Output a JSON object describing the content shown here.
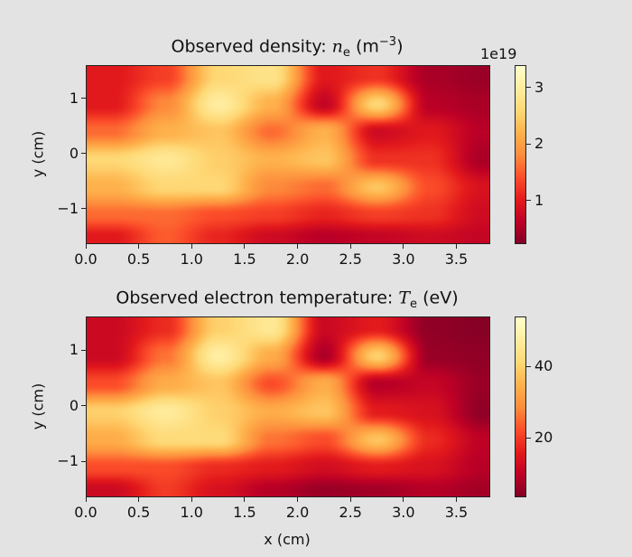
{
  "chart_data": [
    {
      "type": "heatmap",
      "title_prefix": "Observed density: ",
      "title_var": "n",
      "title_sub": "e",
      "title_unit_pre": " (m",
      "title_unit_sup": "−3",
      "title_unit_post": ")",
      "xlabel": "",
      "ylabel": "y (cm)",
      "xlim": [
        0,
        3.82
      ],
      "ylim": [
        -1.64,
        1.6
      ],
      "xticks": [
        "0.0",
        "0.5",
        "1.0",
        "1.5",
        "2.0",
        "2.5",
        "3.0",
        "3.5"
      ],
      "yticks": [
        "1",
        "0",
        "−1"
      ],
      "ytick_values": [
        1,
        0,
        -1
      ],
      "colorbar": {
        "label_offset": "1e19",
        "range": [
          0.23,
          3.4
        ],
        "ticks": [
          "3",
          "2",
          "1"
        ],
        "tick_values": [
          3,
          2,
          1
        ],
        "colormap": "YlOrRd_r"
      },
      "grid_x": [
        0.25,
        0.75,
        1.25,
        1.75,
        2.25,
        2.75,
        3.25,
        3.75
      ],
      "grid_y": [
        1.4,
        0.9,
        0.4,
        -0.1,
        -0.6,
        -1.1,
        -1.5
      ],
      "values": [
        [
          1.0,
          1.3,
          2.6,
          2.8,
          1.0,
          1.2,
          0.5,
          0.4
        ],
        [
          1.0,
          1.8,
          3.0,
          2.2,
          0.7,
          2.6,
          0.6,
          0.5
        ],
        [
          1.6,
          2.2,
          2.4,
          1.6,
          2.2,
          0.8,
          1.0,
          0.6
        ],
        [
          2.6,
          2.9,
          2.5,
          2.2,
          2.4,
          1.2,
          1.2,
          0.5
        ],
        [
          2.2,
          2.6,
          2.6,
          1.8,
          1.6,
          2.4,
          1.4,
          0.9
        ],
        [
          1.6,
          1.6,
          1.4,
          1.3,
          1.1,
          1.3,
          1.2,
          0.8
        ],
        [
          1.0,
          1.5,
          1.1,
          0.8,
          0.6,
          0.7,
          0.8,
          0.7
        ]
      ]
    },
    {
      "type": "heatmap",
      "title_prefix": "Observed electron temperature: ",
      "title_var": "T",
      "title_sub": "e",
      "title_unit_pre": " (eV)",
      "title_unit_sup": "",
      "title_unit_post": "",
      "xlabel": "x (cm)",
      "ylabel": "y (cm)",
      "xlim": [
        0,
        3.82
      ],
      "ylim": [
        -1.64,
        1.6
      ],
      "xticks": [
        "0.0",
        "0.5",
        "1.0",
        "1.5",
        "2.0",
        "2.5",
        "3.0",
        "3.5"
      ],
      "yticks": [
        "1",
        "0",
        "−1"
      ],
      "ytick_values": [
        1,
        0,
        -1
      ],
      "colorbar": {
        "label_offset": "",
        "range": [
          3.3,
          54
        ],
        "ticks": [
          "40",
          "20"
        ],
        "tick_values": [
          40,
          20
        ],
        "colormap": "YlOrRd_r"
      },
      "grid_x": [
        0.25,
        0.75,
        1.25,
        1.75,
        2.25,
        2.75,
        3.25,
        3.75
      ],
      "grid_y": [
        1.4,
        0.9,
        0.4,
        -0.1,
        -0.6,
        -1.1,
        -1.5
      ],
      "values": [
        [
          12,
          18,
          40,
          46,
          12,
          16,
          5,
          4
        ],
        [
          12,
          26,
          48,
          34,
          8,
          40,
          6,
          5
        ],
        [
          22,
          34,
          38,
          22,
          34,
          9,
          11,
          6
        ],
        [
          40,
          47,
          40,
          34,
          38,
          16,
          14,
          5
        ],
        [
          34,
          42,
          42,
          26,
          22,
          38,
          18,
          10
        ],
        [
          22,
          22,
          18,
          16,
          13,
          16,
          14,
          9
        ],
        [
          12,
          20,
          14,
          9,
          6,
          7,
          9,
          7
        ]
      ]
    }
  ]
}
